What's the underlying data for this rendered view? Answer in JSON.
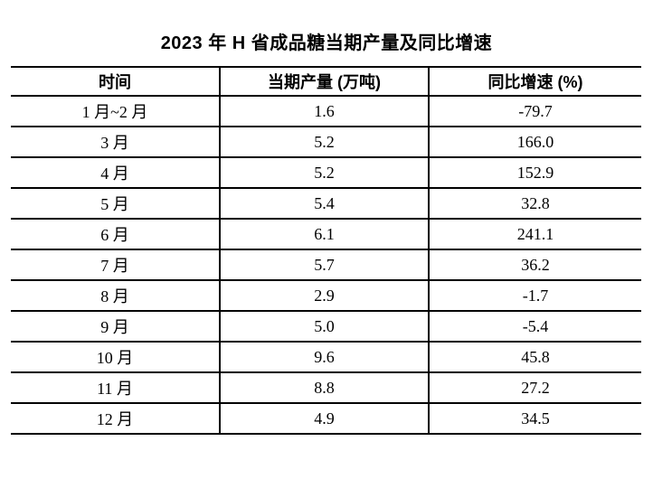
{
  "title": "2023 年 H 省成品糖当期产量及同比增速",
  "colors": {
    "text": "#000000",
    "background": "#ffffff",
    "border": "#000000"
  },
  "table": {
    "headers": [
      "时间",
      "当期产量 (万吨)",
      "同比增速 (%)"
    ],
    "rows": [
      {
        "time": "1 月~2 月",
        "output": "1.6",
        "growth": "-79.7"
      },
      {
        "time": "3 月",
        "output": "5.2",
        "growth": "166.0"
      },
      {
        "time": "4 月",
        "output": "5.2",
        "growth": "152.9"
      },
      {
        "time": "5 月",
        "output": "5.4",
        "growth": "32.8"
      },
      {
        "time": "6 月",
        "output": "6.1",
        "growth": "241.1"
      },
      {
        "time": "7 月",
        "output": "5.7",
        "growth": "36.2"
      },
      {
        "time": "8 月",
        "output": "2.9",
        "growth": "-1.7"
      },
      {
        "time": "9 月",
        "output": "5.0",
        "growth": "-5.4"
      },
      {
        "time": "10 月",
        "output": "9.6",
        "growth": "45.8"
      },
      {
        "time": "11 月",
        "output": "8.8",
        "growth": "27.2"
      },
      {
        "time": "12 月",
        "output": "4.9",
        "growth": "34.5"
      }
    ]
  },
  "chart_data": {
    "type": "table",
    "title": "2023 年 H 省成品糖当期产量及同比增速",
    "columns": [
      "时间",
      "当期产量 (万吨)",
      "同比增速 (%)"
    ],
    "categories": [
      "1 月~2 月",
      "3 月",
      "4 月",
      "5 月",
      "6 月",
      "7 月",
      "8 月",
      "9 月",
      "10 月",
      "11 月",
      "12 月"
    ],
    "series": [
      {
        "name": "当期产量 (万吨)",
        "values": [
          1.6,
          5.2,
          5.2,
          5.4,
          6.1,
          5.7,
          2.9,
          5.0,
          9.6,
          8.8,
          4.9
        ]
      },
      {
        "name": "同比增速 (%)",
        "values": [
          -79.7,
          166.0,
          152.9,
          32.8,
          241.1,
          36.2,
          -1.7,
          -5.4,
          45.8,
          27.2,
          34.5
        ]
      }
    ]
  }
}
